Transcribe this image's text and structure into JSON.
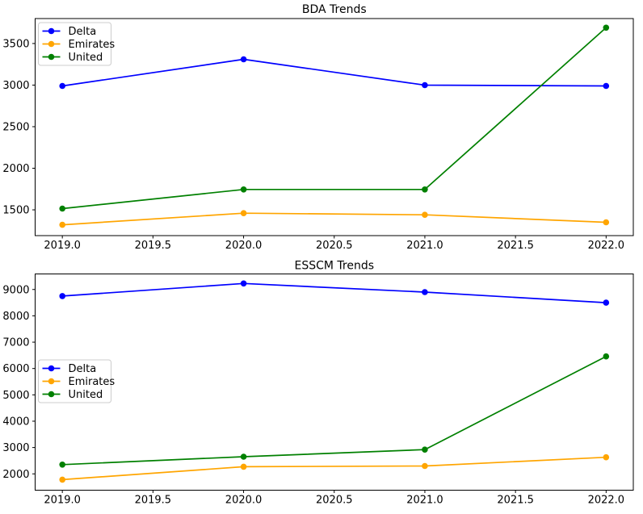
{
  "figure": {
    "background": "#ffffff",
    "spine_color": "#000000",
    "tick_color": "#000000",
    "text_color": "#000000",
    "legend_border_color": "#cccccc",
    "legend_background": "#ffffff"
  },
  "chart_data": [
    {
      "type": "line",
      "title": "BDA Trends",
      "x": [
        2019.0,
        2020.0,
        2021.0,
        2022.0
      ],
      "xticks": [
        2019.0,
        2019.5,
        2020.0,
        2020.5,
        2021.0,
        2021.5,
        2022.0
      ],
      "xtick_labels": [
        "2019.0",
        "2019.5",
        "2020.0",
        "2020.5",
        "2021.0",
        "2021.5",
        "2022.0"
      ],
      "yticks": [
        1500,
        2000,
        2500,
        3000,
        3500
      ],
      "ytick_labels": [
        "1500",
        "2000",
        "2500",
        "3000",
        "3500"
      ],
      "xlim": [
        2018.85,
        2022.15
      ],
      "ylim": [
        1190,
        3800
      ],
      "grid": false,
      "legend_position": "upper-left",
      "series": [
        {
          "name": "Delta",
          "color": "#0000ff",
          "marker": "circle",
          "values": [
            2990,
            3310,
            3000,
            2990
          ]
        },
        {
          "name": "Emirates",
          "color": "#ffa500",
          "marker": "circle",
          "values": [
            1320,
            1460,
            1440,
            1350
          ]
        },
        {
          "name": "United",
          "color": "#008000",
          "marker": "circle",
          "values": [
            1515,
            1745,
            1745,
            3690
          ]
        }
      ]
    },
    {
      "type": "line",
      "title": "ESSCM Trends",
      "x": [
        2019.0,
        2020.0,
        2021.0,
        2022.0
      ],
      "xticks": [
        2019.0,
        2019.5,
        2020.0,
        2020.5,
        2021.0,
        2021.5,
        2022.0
      ],
      "xtick_labels": [
        "2019.0",
        "2019.5",
        "2020.0",
        "2020.5",
        "2021.0",
        "2021.5",
        "2022.0"
      ],
      "yticks": [
        2000,
        3000,
        4000,
        5000,
        6000,
        7000,
        8000,
        9000
      ],
      "ytick_labels": [
        "2000",
        "3000",
        "4000",
        "5000",
        "6000",
        "7000",
        "8000",
        "9000"
      ],
      "xlim": [
        2018.85,
        2022.15
      ],
      "ylim": [
        1380,
        9590
      ],
      "grid": false,
      "legend_position": "center-left",
      "series": [
        {
          "name": "Delta",
          "color": "#0000ff",
          "marker": "circle",
          "values": [
            8750,
            9230,
            8900,
            8500
          ]
        },
        {
          "name": "Emirates",
          "color": "#ffa500",
          "marker": "circle",
          "values": [
            1780,
            2270,
            2300,
            2630
          ]
        },
        {
          "name": "United",
          "color": "#008000",
          "marker": "circle",
          "values": [
            2350,
            2650,
            2920,
            6460
          ]
        }
      ]
    }
  ]
}
